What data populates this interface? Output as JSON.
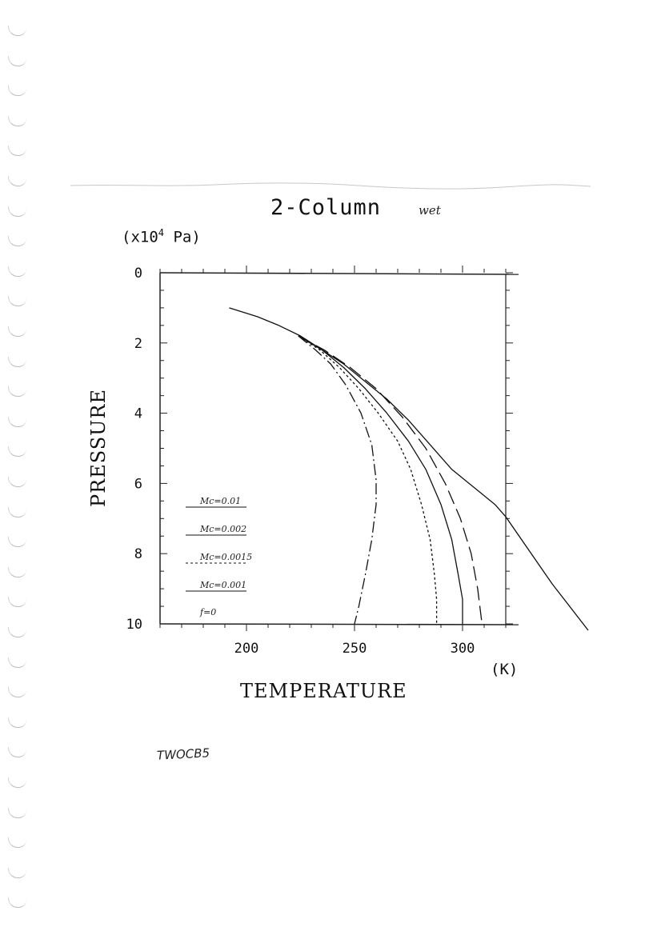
{
  "page": {
    "title": "2-Column",
    "title_note": "wet",
    "unit_prefix": "(x10",
    "unit_exponent": "4",
    "unit_suffix": " Pa)",
    "figure_id": "TWOCB5"
  },
  "chart_data": {
    "type": "line",
    "title": "2-Column",
    "xlabel": "TEMPERATURE",
    "xunit": "(K)",
    "ylabel": "PRESSURE",
    "yunit": "(x10^4 Pa)",
    "xlim": [
      160,
      320
    ],
    "ylim": [
      0,
      10
    ],
    "y_inverted": true,
    "xticks": [
      200,
      250,
      300
    ],
    "yticks": [
      0,
      2,
      4,
      6,
      8,
      10
    ],
    "legend_position": "lower-left",
    "series": [
      {
        "name": "Mc=0.01",
        "style": "solid",
        "points": [
          [
            192,
            1.0
          ],
          [
            205,
            1.25
          ],
          [
            215,
            1.5
          ],
          [
            225,
            1.8
          ],
          [
            235,
            2.2
          ],
          [
            245,
            2.6
          ],
          [
            255,
            3.1
          ],
          [
            265,
            3.6
          ],
          [
            275,
            4.2
          ],
          [
            285,
            4.9
          ],
          [
            295,
            5.6
          ],
          [
            305,
            6.1
          ],
          [
            315,
            6.6
          ],
          [
            320,
            6.95
          ]
        ]
      },
      {
        "name": "Mc=0.002",
        "style": "solid",
        "points": [
          [
            224,
            1.8
          ],
          [
            235,
            2.2
          ],
          [
            245,
            2.7
          ],
          [
            255,
            3.3
          ],
          [
            265,
            4.0
          ],
          [
            275,
            4.8
          ],
          [
            283,
            5.6
          ],
          [
            290,
            6.6
          ],
          [
            295,
            7.6
          ],
          [
            298,
            8.6
          ],
          [
            300,
            9.3
          ],
          [
            300,
            10.0
          ]
        ]
      },
      {
        "name": "Mc=0.0015",
        "style": "dotted",
        "points": [
          [
            224,
            1.8
          ],
          [
            234,
            2.2
          ],
          [
            243,
            2.7
          ],
          [
            252,
            3.3
          ],
          [
            261,
            4.0
          ],
          [
            270,
            4.8
          ],
          [
            276,
            5.6
          ],
          [
            281,
            6.6
          ],
          [
            285,
            7.6
          ],
          [
            287,
            8.6
          ],
          [
            288,
            9.3
          ],
          [
            288,
            10.0
          ]
        ]
      },
      {
        "name": "Mc=0.001",
        "style": "dash-dot",
        "points": [
          [
            224,
            1.8
          ],
          [
            232,
            2.2
          ],
          [
            239,
            2.6
          ],
          [
            246,
            3.2
          ],
          [
            253,
            4.0
          ],
          [
            258,
            4.9
          ],
          [
            260,
            5.9
          ],
          [
            260,
            6.6
          ],
          [
            258,
            7.6
          ],
          [
            255,
            8.6
          ],
          [
            252,
            9.5
          ],
          [
            250,
            10.0
          ]
        ]
      },
      {
        "name": "f=0",
        "style": "long-dash",
        "points": [
          [
            224,
            1.8
          ],
          [
            236,
            2.2
          ],
          [
            248,
            2.7
          ],
          [
            260,
            3.3
          ],
          [
            272,
            4.1
          ],
          [
            283,
            5.0
          ],
          [
            292,
            6.0
          ],
          [
            299,
            7.0
          ],
          [
            304,
            8.0
          ],
          [
            307,
            9.0
          ],
          [
            309,
            10.0
          ]
        ]
      }
    ],
    "legend": [
      "Mc=0.01",
      "Mc=0.002",
      "Mc=0.0015",
      "Mc=0.001",
      "f=0"
    ]
  },
  "styles": {
    "line_color": "#111111",
    "axis_color": "#222222"
  }
}
